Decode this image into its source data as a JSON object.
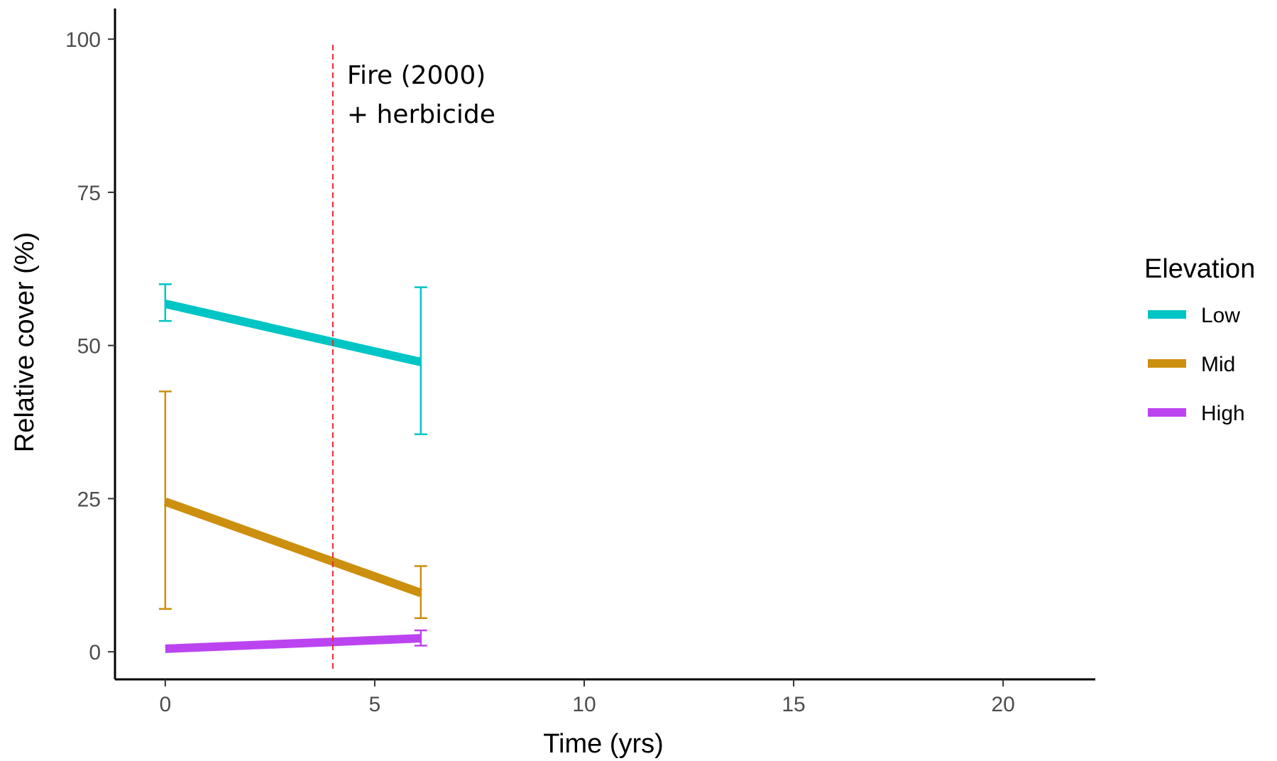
{
  "chart_data": {
    "type": "line",
    "xlabel": "Time (yrs)",
    "ylabel": "Relative cover (%)",
    "xlim": [
      -1.2,
      22.2
    ],
    "ylim": [
      -4.5,
      105
    ],
    "x_ticks": [
      0,
      5,
      10,
      15,
      20
    ],
    "y_ticks": [
      0,
      25,
      50,
      75,
      100
    ],
    "grid": false,
    "legend": {
      "title": "Elevation",
      "placement": "right"
    },
    "series": [
      {
        "name": "Low",
        "color": "#00c5c5",
        "x": [
          0,
          6.1
        ],
        "y": [
          56.8,
          47.3
        ],
        "error_bars": [
          {
            "x": 0,
            "lower": 54.0,
            "upper": 60.0
          },
          {
            "x": 6.1,
            "lower": 35.5,
            "upper": 59.5
          }
        ]
      },
      {
        "name": "Mid",
        "color": "#cc8f0e",
        "x": [
          0,
          6.1
        ],
        "y": [
          24.5,
          9.6
        ],
        "error_bars": [
          {
            "x": 0,
            "lower": 7.0,
            "upper": 42.5
          },
          {
            "x": 6.1,
            "lower": 5.5,
            "upper": 14.0
          }
        ]
      },
      {
        "name": "High",
        "color": "#bb44f0",
        "x": [
          0,
          6.1
        ],
        "y": [
          0.5,
          2.2
        ],
        "error_bars": [
          {
            "x": 6.1,
            "lower": 1.0,
            "upper": 3.5
          }
        ]
      }
    ],
    "annotations": [
      {
        "type": "vline",
        "x": 4,
        "color": "#e8292c",
        "style": "dashed",
        "label_lines": [
          "Fire (2000)",
          "+ herbicide"
        ]
      }
    ]
  }
}
